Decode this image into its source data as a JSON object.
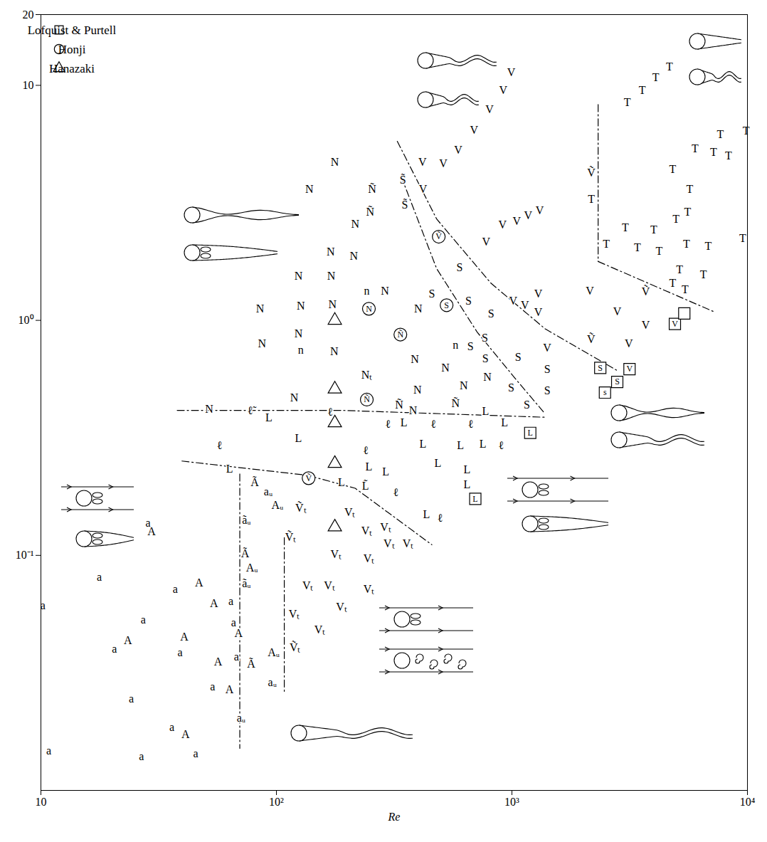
{
  "chart_data": {
    "type": "scatter",
    "x_label": "Re",
    "log": true,
    "color": "#000000",
    "legend": "top-left",
    "xlim": [
      10,
      10000
    ],
    "xticks": [
      10,
      {
        "value": 100,
        "label": "10²"
      },
      {
        "value": 1000,
        "label": "10³"
      },
      {
        "value": 10000,
        "label": "10⁴"
      }
    ],
    "ylim": [
      0.01,
      20
    ],
    "yticks": [
      {
        "value": 0.1,
        "label": "10⁻¹"
      },
      {
        "value": 1,
        "label": "10⁰"
      },
      10,
      20
    ],
    "series": [
      {
        "marker": "text",
        "x": [
          10.8,
          10.2,
          17.7,
          27.2,
          20.5,
          23.4,
          24.2,
          26.7,
          36.0,
          41.1,
          45.4,
          37.2,
          46.9,
          54.3,
          64.1,
          40.6,
          39.0,
          56.5,
          53.6,
          63.2,
          28.5,
          29.5,
          80.9,
          92.3,
          101,
          74.6,
          73.6,
          78.7,
          74.6,
          65.8,
          69.0,
          67.6,
          78.2,
          97.3,
          96.1,
          70.8,
          127,
          205,
          242,
          291,
          362,
          301,
          115,
          179,
          247,
          136,
          168,
          247,
          119,
          153,
          189,
          120,
          92.9,
          77.2,
          57.3,
          63.2,
          124,
          169,
          239,
          247,
          291,
          297,
          348,
          463,
          419,
          604,
          667,
          752,
          485,
          645,
          645,
          899,
          772,
          930,
          239,
          189,
          321,
          434,
          495,
          177,
          138,
          216,
          170,
          213,
          124,
          171,
          85.3,
          127,
          173,
          86.9,
          124,
          127,
          176,
          119,
          51.8,
          255,
          250,
          242,
          289,
          400,
          387,
          522,
          242,
          397,
          332,
          380,
          624,
          787,
          576,
          576,
          344,
          351,
          600,
          457,
          654,
          815,
          767,
          667,
          772,
          1062,
          993,
          1157,
          1412,
          1412,
          419,
          417,
          511,
          592,
          690,
          804,
          918,
          993,
          777,
          912,
          1048,
          1172,
          1312,
          2173,
          1013,
          1135,
          1294,
          1294,
          2144,
          2170,
          3133,
          2800,
          3698,
          3698,
          1412,
          2173,
          2516,
          3030,
          3412,
          4000,
          4817,
          5689,
          5997,
          7180,
          7670,
          8303,
          9868,
          9546,
          6811,
          5575,
          4976,
          5509,
          6503,
          5152,
          4817,
          4217,
          5432,
          3088,
          3573,
          4083,
          4667
        ],
        "y": [
          0.0147,
          0.061,
          0.081,
          0.053,
          0.04,
          0.0435,
          0.0246,
          0.0139,
          0.0185,
          0.0173,
          0.0143,
          0.0717,
          0.0763,
          0.0624,
          0.0637,
          0.045,
          0.0387,
          0.0353,
          0.0277,
          0.0268,
          0.137,
          0.126,
          0.204,
          0.187,
          0.163,
          0.141,
          0.102,
          0.0883,
          0.0758,
          0.0518,
          0.0467,
          0.0371,
          0.0346,
          0.0387,
          0.0287,
          0.0203,
          0.159,
          0.152,
          0.127,
          0.132,
          0.112,
          0.112,
          0.119,
          0.101,
          0.0966,
          0.0742,
          0.0742,
          0.0717,
          0.0562,
          0.0483,
          0.0603,
          0.0406,
          0.386,
          0.414,
          0.293,
          0.233,
          0.314,
          0.406,
          0.279,
          0.238,
          0.227,
          0.361,
          0.366,
          0.361,
          0.297,
          0.293,
          0.361,
          0.297,
          0.246,
          0.232,
          0.2,
          0.293,
          0.409,
          0.366,
          0.197,
          0.204,
          0.185,
          0.149,
          0.144,
          4.7,
          3.61,
          2.57,
          1.96,
          1.88,
          1.54,
          1.54,
          1.12,
          1.15,
          1.17,
          0.796,
          0.877,
          0.747,
          0.737,
          0.467,
          0.42,
          3.61,
          2.89,
          1.33,
          1.33,
          1.12,
          0.683,
          0.628,
          0.586,
          0.507,
          0.438,
          0.414,
          0.528,
          0.574,
          0.444,
          0.785,
          3.95,
          3.1,
          1.68,
          1.3,
          1.21,
          1.07,
          0.841,
          0.774,
          0.688,
          0.697,
          0.518,
          0.438,
          0.503,
          0.62,
          3.61,
          4.7,
          4.63,
          5.32,
          6.46,
          7.9,
          9.53,
          11.3,
          2.16,
          2.55,
          2.64,
          2.79,
          2.93,
          4.23,
          1.21,
          1.16,
          1.08,
          1.3,
          1.33,
          0.829,
          0.796,
          1.09,
          1.32,
          0.953,
          0.763,
          3.27,
          2.11,
          2.48,
          2.04,
          2.43,
          4.38,
          3.61,
          5.39,
          5.21,
          6.19,
          5.03,
          6.41,
          2.24,
          2.07,
          2.89,
          2.7,
          2.11,
          1.57,
          1.64,
          1.44,
          1.97,
          1.35,
          8.47,
          9.53,
          10.8,
          12.0
        ],
        "labels": [
          "a",
          "a",
          "a",
          "a",
          "a",
          "A",
          "a",
          "a",
          "a",
          "A",
          "a",
          "a",
          "A",
          "A",
          "a",
          "A",
          "a",
          "A",
          "a",
          "A",
          "a",
          "A",
          "Ã",
          "aᵤ",
          "Aᵤ",
          "ãᵤ",
          "Ã",
          "Aᵤ",
          "ãᵤ",
          "a",
          "A",
          "a",
          "Ã",
          "Aᵤ",
          "aᵤ",
          "aᵤ",
          "Ṽₜ",
          "Vₜ",
          "Vₜ",
          "Vₜ",
          "Vₜ",
          "Vₜ",
          "Ṽₜ",
          "Vₜ",
          "Vₜ",
          "Vₜ",
          "Vₜ",
          "Vₜ",
          "Vₜ",
          "Vₜ",
          "Vₜ",
          "Ṽₜ",
          "L",
          "ℓ̃",
          "ℓ",
          "L",
          "L",
          "ℓ",
          "ℓ",
          "L",
          "L",
          "ℓ",
          "L",
          "ℓ",
          "L",
          "L",
          "ℓ",
          "L",
          "L",
          "L",
          "L",
          "ℓ",
          "L",
          "L",
          "L̃",
          "L",
          "ℓ",
          "L",
          "ℓ",
          "N",
          "N",
          "N",
          "N",
          "N",
          "N",
          "N",
          "N",
          "N",
          "N",
          "N",
          "N",
          "n",
          "N",
          "N",
          "N",
          "Ñ",
          "Ñ",
          "n",
          "N",
          "N",
          "N",
          "N",
          "Nₜ",
          "N",
          "Ñ",
          "N",
          "N",
          "N",
          "Ñ",
          "n",
          "S̃",
          "S̃",
          "S",
          "S",
          "S",
          "S",
          "S",
          "S",
          "S",
          "S",
          "S",
          "S",
          "S",
          "S",
          "V",
          "V",
          "V",
          "V",
          "V",
          "V",
          "V",
          "V",
          "V",
          "V",
          "V",
          "V",
          "V",
          "Ṽ",
          "V",
          "V",
          "V",
          "V",
          "V",
          "Ṽ",
          "V",
          "V",
          "Ṽ",
          "V",
          "V",
          "T",
          "T",
          "T",
          "T",
          "T",
          "T",
          "T",
          "T",
          "T",
          "T",
          "T",
          "T",
          "T",
          "T",
          "T",
          "T",
          "T",
          "T",
          "T",
          "T",
          "T",
          "T",
          "T",
          "T",
          "T",
          "T"
        ]
      },
      {
        "name": "Lofquist & Purtell",
        "marker": "square",
        "x": [
          699,
          1196,
          2372,
          2483,
          2800,
          3157,
          4920,
          5394
        ],
        "y": [
          0.174,
          0.332,
          0.628,
          0.493,
          0.547,
          0.62,
          0.966,
          1.07
        ],
        "labels": [
          "L",
          "L",
          "S",
          "s",
          "S",
          "V",
          "V",
          null
        ]
      },
      {
        "name": "Honji",
        "marker": "circle",
        "x": [
          137,
          247,
          336,
          242,
          489,
          528
        ],
        "y": [
          0.213,
          1.12,
          0.87,
          0.46,
          2.27,
          1.16
        ],
        "labels": [
          "Ṽ",
          "N",
          "Ñ",
          "Ñ",
          "Ṽ",
          "S"
        ]
      },
      {
        "name": "Hanazaki",
        "marker": "triangle",
        "x": [
          177,
          177,
          177,
          177,
          177
        ],
        "y": [
          1.0,
          0.51,
          0.366,
          0.246,
          0.132
        ],
        "labels": [
          null,
          null,
          null,
          null,
          null
        ]
      }
    ],
    "boundaries": [
      {
        "line_style": "dashdot",
        "x": [
          37.9,
          189,
          1384
        ],
        "y": [
          0.414,
          0.414,
          0.387
        ]
      },
      {
        "line_style": "dashdot",
        "x": [
          39.7,
          136,
          216,
          457
        ],
        "y": [
          0.252,
          0.219,
          0.193,
          0.111
        ]
      },
      {
        "line_style": "dashdot",
        "x": [
          69.9,
          69.9
        ],
        "y": [
          0.222,
          0.0151
        ]
      },
      {
        "line_style": "dashdot",
        "x": [
          108,
          108
        ],
        "y": [
          0.119,
          0.0259
        ]
      },
      {
        "line_style": "dashdot",
        "x": [
          326,
          479,
          814,
          1384,
          2833
        ],
        "y": [
          5.78,
          2.7,
          1.44,
          0.92,
          0.607
        ]
      },
      {
        "line_style": "dashdot",
        "x": [
          339,
          479,
          713,
          1062,
          1384
        ],
        "y": [
          4.09,
          1.66,
          0.889,
          0.547,
          0.4
        ]
      },
      {
        "line_style": "dashdot",
        "x": [
          2323,
          2323
        ],
        "y": [
          8.28,
          1.78
        ]
      },
      {
        "line_style": "dashdot",
        "x": [
          2323,
          7180
        ],
        "y": [
          1.78,
          1.09
        ]
      }
    ]
  }
}
